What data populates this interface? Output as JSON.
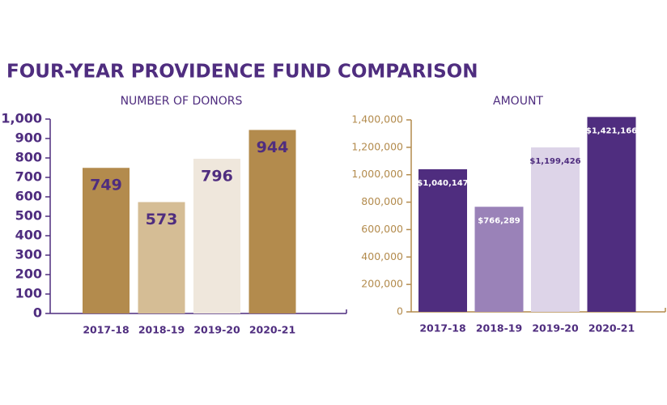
{
  "title": "FOUR-YEAR PROVIDENCE FUND COMPARISON",
  "chart_data": [
    {
      "type": "bar",
      "title": "NUMBER OF DONORS",
      "categories": [
        "2017-18",
        "2018-19",
        "2019-20",
        "2020-21"
      ],
      "values": [
        749,
        573,
        796,
        944
      ],
      "colors": [
        "#b38b4d",
        "#d5bd95",
        "#efe7dc",
        "#b38b4d"
      ],
      "axis_color": "#4f2d7f",
      "ylim": [
        0,
        1000
      ],
      "yticks": [
        0,
        100,
        200,
        300,
        400,
        500,
        600,
        700,
        800,
        900,
        {
          "value": 1000,
          "label": "1,000"
        }
      ]
    },
    {
      "type": "bar",
      "title": "AMOUNT",
      "categories": [
        "2017-18",
        "2018-19",
        "2019-20",
        "2020-21"
      ],
      "values": [
        1040147,
        766289,
        1199426,
        1421166
      ],
      "value_labels": [
        "$1,040,147",
        "$766,289",
        "$1,199,426",
        "$1,421,166"
      ],
      "colors": [
        "#4f2d7f",
        "#9a82b8",
        "#ddd4e8",
        "#4f2d7f"
      ],
      "axis_color": "#b38b4d",
      "ylim": [
        0,
        1400000
      ],
      "yticks": [
        0,
        {
          "value": 200000,
          "label": "200,000"
        },
        {
          "value": 400000,
          "label": "400,000"
        },
        {
          "value": 600000,
          "label": "600,000"
        },
        {
          "value": 800000,
          "label": "800,000"
        },
        {
          "value": 1000000,
          "label": "1,000,000"
        },
        {
          "value": 1200000,
          "label": "1,200,000"
        },
        {
          "value": 1400000,
          "label": "1,400,000"
        }
      ]
    }
  ]
}
